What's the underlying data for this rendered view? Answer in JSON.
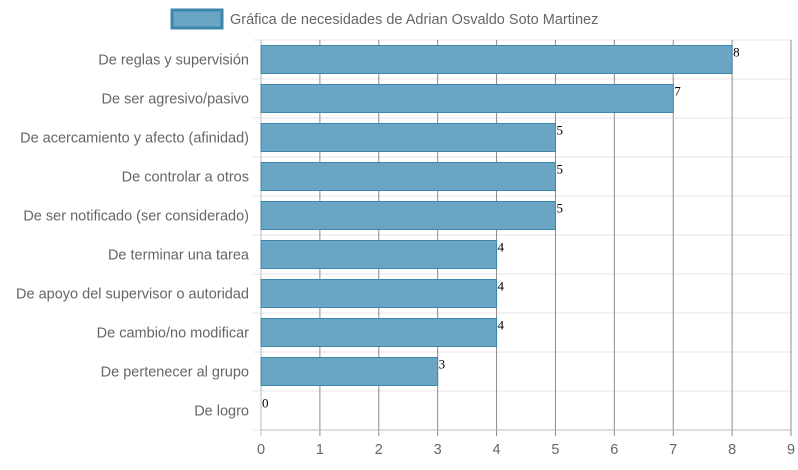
{
  "chart_data": {
    "type": "bar",
    "orientation": "horizontal",
    "title": "",
    "legend": {
      "position": "top",
      "entries": [
        "Gráfica de necesidades de Adrian Osvaldo Soto Martinez"
      ]
    },
    "categories": [
      "De reglas y supervisión",
      "De ser agresivo/pasivo",
      "De acercamiento y afecto (afinidad)",
      "De controlar a otros",
      "De ser notificado (ser considerado)",
      "De terminar una tarea",
      "De apoyo del supervisor o autoridad",
      "De cambio/no modificar",
      "De pertenecer al grupo",
      "De logro"
    ],
    "series": [
      {
        "name": "Gráfica de necesidades de Adrian Osvaldo Soto Martinez",
        "values": [
          8,
          7,
          5,
          5,
          5,
          4,
          4,
          4,
          3,
          0
        ],
        "color": "#6aa5c4",
        "border_color": "#3e86ab"
      }
    ],
    "xlim": [
      0,
      9
    ],
    "x_ticks": [
      "0",
      "1",
      "2",
      "3",
      "4",
      "5",
      "6",
      "7",
      "8",
      "9"
    ],
    "grid": true,
    "data_labels": true,
    "xlabel": "",
    "ylabel": ""
  }
}
